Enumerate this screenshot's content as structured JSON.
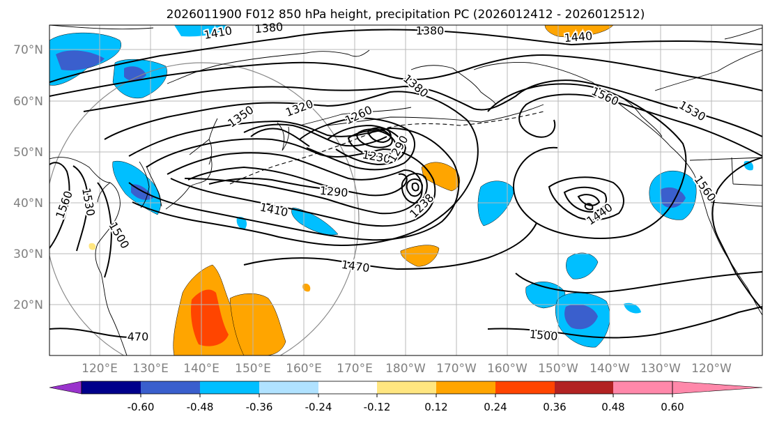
{
  "title": "2026011900 F012 850 hPa height, precipitation PC (2026012412 - 2026012512)",
  "map": {
    "lat_labels": [
      "70°N",
      "60°N",
      "50°N",
      "40°N",
      "30°N",
      "20°N"
    ],
    "lon_labels": [
      "120°E",
      "130°E",
      "140°E",
      "150°E",
      "160°E",
      "170°E",
      "180°W",
      "170°W",
      "160°W",
      "150°W",
      "140°W",
      "130°W",
      "120°W"
    ],
    "contour_labels": [
      {
        "text": "1410",
        "rot": -10
      },
      {
        "text": "1380",
        "rot": -5
      },
      {
        "text": "1380",
        "rot": 0
      },
      {
        "text": "1440",
        "rot": -5
      },
      {
        "text": "1380",
        "rot": 40
      },
      {
        "text": "1560",
        "rot": 25
      },
      {
        "text": "1530",
        "rot": 30
      },
      {
        "text": "1350",
        "rot": -35
      },
      {
        "text": "1320",
        "rot": -20
      },
      {
        "text": "1260",
        "rot": -25
      },
      {
        "text": "1230",
        "rot": 10
      },
      {
        "text": "1290",
        "rot": -60
      },
      {
        "text": "1290",
        "rot": 5
      },
      {
        "text": "1238",
        "rot": -45
      },
      {
        "text": "1410",
        "rot": 12
      },
      {
        "text": "1470",
        "rot": 8
      },
      {
        "text": "1440",
        "rot": -35
      },
      {
        "text": "1560",
        "rot": 55
      },
      {
        "text": "1560",
        "rot": -70
      },
      {
        "text": "1530",
        "rot": 80
      },
      {
        "text": "1500",
        "rot": 60
      },
      {
        "text": "1500",
        "rot": 5
      },
      {
        "text": "470",
        "rot": 0
      }
    ]
  },
  "colorbar": {
    "labels": [
      "-0.60",
      "-0.48",
      "-0.36",
      "-0.24",
      "-0.12",
      "0.12",
      "0.24",
      "0.36",
      "0.48",
      "0.60"
    ],
    "colors": [
      "#9933cc",
      "#00008b",
      "#3a5fcd",
      "#00bfff",
      "#b0e2ff",
      "#ffffff",
      "#ffe680",
      "#ffa500",
      "#ff4500",
      "#b22222",
      "#ff88aa"
    ]
  }
}
